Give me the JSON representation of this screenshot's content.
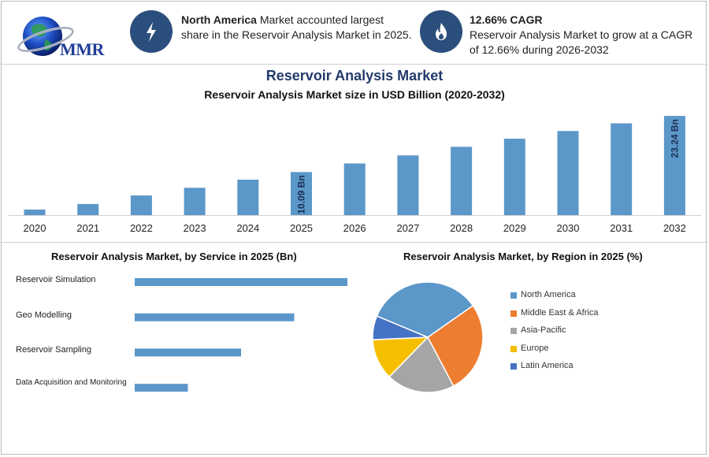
{
  "header": {
    "logo_text": "MMR",
    "info1": {
      "icon": "lightning-icon",
      "bold": "North America",
      "rest_line1": " Market accounted largest",
      "line2": "share in the Reservoir Analysis Market in 2025."
    },
    "info2": {
      "icon": "flame-icon",
      "bold": "12.66% CAGR",
      "line1": "Reservoir Analysis Market to grow at a CAGR",
      "line2": "of 12.66% during 2026-2032"
    }
  },
  "colors": {
    "bar": "#5b97c9",
    "navy": "#2b4f7c",
    "title": "#233a6b"
  },
  "chart_data": [
    {
      "type": "bar",
      "title": "Reservoir Analysis Market",
      "subtitle": "Reservoir Analysis Market size in USD Billion (2020-2032)",
      "categories": [
        "2020",
        "2021",
        "2022",
        "2023",
        "2024",
        "2025",
        "2026",
        "2027",
        "2028",
        "2029",
        "2030",
        "2031",
        "2032"
      ],
      "values": [
        1.3,
        2.6,
        4.6,
        6.4,
        8.3,
        10.09,
        12.1,
        14.0,
        16.0,
        17.9,
        19.7,
        21.5,
        23.24
      ],
      "data_labels": {
        "2025": "10.09 Bn",
        "2032": "23.24 Bn"
      },
      "ylim": [
        0,
        24
      ]
    },
    {
      "type": "bar",
      "orientation": "horizontal",
      "title": "Reservoir Analysis Market, by Service in 2025 (Bn)",
      "categories": [
        "Reservoir Simulation",
        "Geo Modelling",
        "Reservoir Sampling",
        "Data Acquisition and Monitoring"
      ],
      "values": [
        4.0,
        3.0,
        2.0,
        1.0
      ],
      "xlim": [
        0,
        4.0
      ]
    },
    {
      "type": "pie",
      "title": "Reservoir Analysis Market, by Region in 2025 (%)",
      "labels": [
        "North America",
        "Middle East & Africa",
        "Asia-Pacific",
        "Europe",
        "Latin America"
      ],
      "values": [
        34,
        27,
        20,
        12,
        7
      ],
      "colors": [
        "#5b97c9",
        "#ed7d31",
        "#a5a5a5",
        "#f5bf00",
        "#4472c4"
      ]
    }
  ]
}
